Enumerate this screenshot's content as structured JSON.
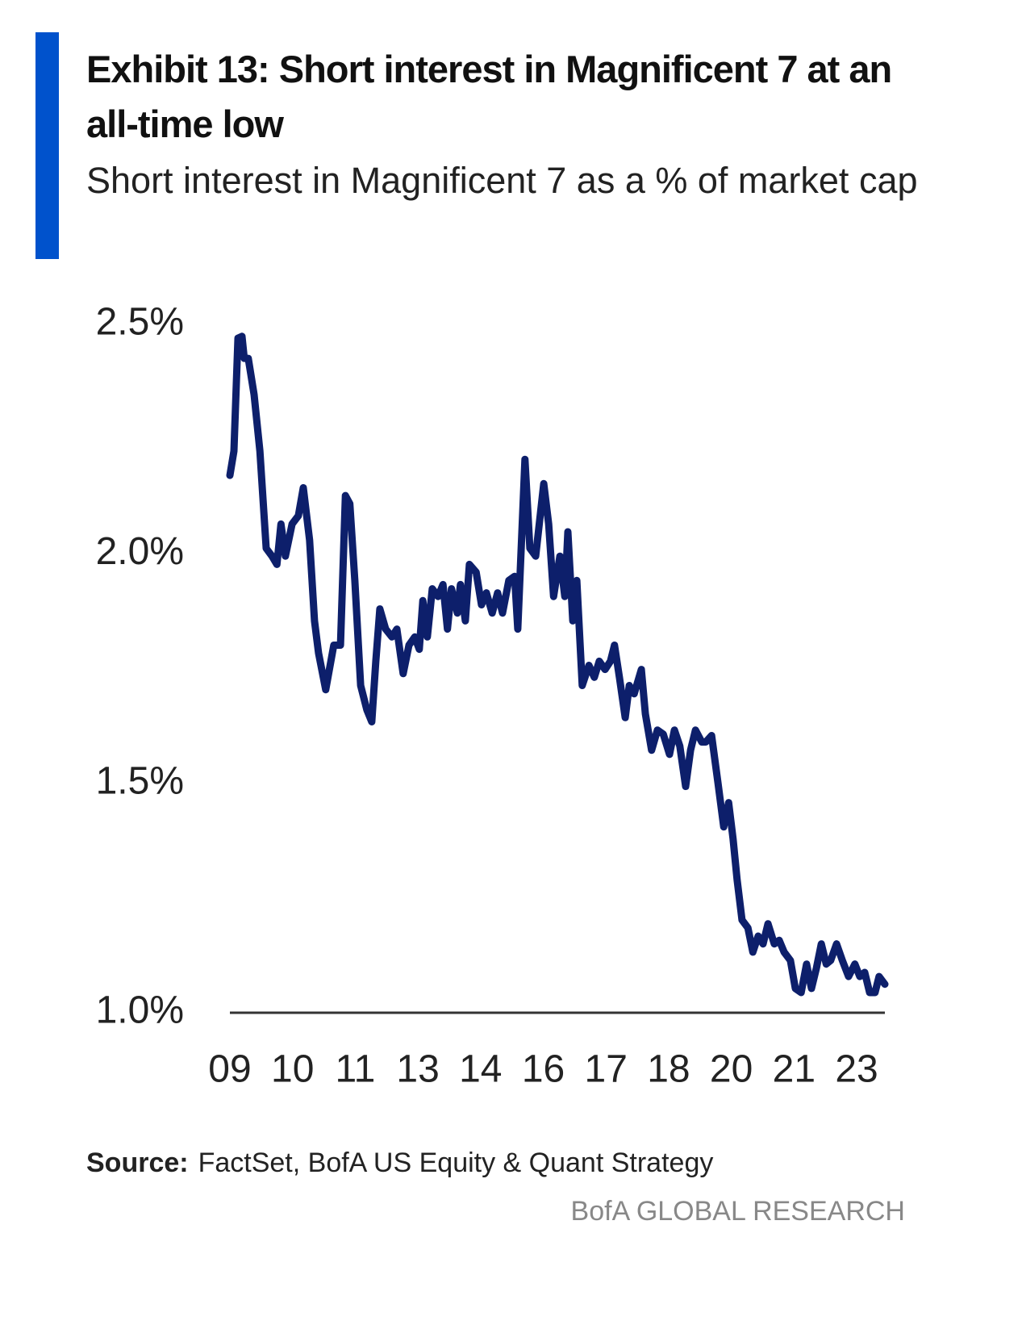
{
  "chart_data": {
    "type": "line",
    "title": "Exhibit 13: Short interest in Magnificent 7 at an all-time low",
    "subtitle": "Short interest in Magnificent 7 as a % of market cap",
    "source_label": "Source:",
    "source": "FactSet, BofA US Equity & Quant Strategy",
    "footer": "BofA GLOBAL RESEARCH",
    "color": "#0d1f6b",
    "x": [
      2009.0,
      2009.09,
      2009.18,
      2009.27,
      2009.32,
      2009.41,
      2009.54,
      2009.67,
      2009.81,
      2009.94,
      2010.05,
      2010.14,
      2010.24,
      2010.39,
      2010.53,
      2010.64,
      2010.78,
      2010.89,
      2010.98,
      2011.14,
      2011.32,
      2011.47,
      2011.58,
      2011.68,
      2011.79,
      2011.92,
      2012.06,
      2012.17,
      2012.26,
      2012.35,
      2012.48,
      2012.62,
      2012.73,
      2012.87,
      2013.0,
      2013.13,
      2013.23,
      2013.31,
      2013.41,
      2013.52,
      2013.65,
      2013.76,
      2013.86,
      2013.95,
      2014.08,
      2014.15,
      2014.26,
      2014.35,
      2014.5,
      2014.62,
      2014.73,
      2014.86,
      2014.98,
      2015.09,
      2015.23,
      2015.36,
      2015.43,
      2015.59,
      2015.7,
      2015.83,
      2016.01,
      2016.12,
      2016.23,
      2016.37,
      2016.48,
      2016.55,
      2016.66,
      2016.75,
      2016.87,
      2017.02,
      2017.14,
      2017.25,
      2017.38,
      2017.5,
      2017.59,
      2017.7,
      2017.83,
      2017.92,
      2018.03,
      2018.19,
      2018.28,
      2018.42,
      2018.55,
      2018.68,
      2018.82,
      2018.93,
      2019.05,
      2019.18,
      2019.29,
      2019.4,
      2019.54,
      2019.63,
      2019.76,
      2019.9,
      2020.03,
      2020.14,
      2020.24,
      2020.33,
      2020.44,
      2020.57,
      2020.68,
      2020.8,
      2020.91,
      2021.02,
      2021.16,
      2021.27,
      2021.38,
      2021.52,
      2021.63,
      2021.76,
      2021.88,
      2021.99,
      2022.1,
      2022.21,
      2022.32,
      2022.42,
      2022.55,
      2022.68,
      2022.82,
      2022.96,
      2023.07,
      2023.18,
      2023.29,
      2023.41,
      2023.5,
      2023.63
    ],
    "values": [
      2.171,
      2.224,
      2.47,
      2.474,
      2.426,
      2.426,
      2.347,
      2.224,
      2.012,
      1.995,
      1.977,
      2.065,
      1.995,
      2.065,
      2.083,
      2.144,
      2.03,
      1.854,
      1.784,
      1.704,
      1.801,
      1.801,
      2.127,
      2.109,
      1.942,
      1.713,
      1.66,
      1.634,
      1.766,
      1.88,
      1.836,
      1.819,
      1.836,
      1.739,
      1.801,
      1.819,
      1.792,
      1.898,
      1.819,
      1.924,
      1.907,
      1.933,
      1.836,
      1.924,
      1.871,
      1.933,
      1.854,
      1.977,
      1.96,
      1.889,
      1.915,
      1.871,
      1.915,
      1.871,
      1.942,
      1.951,
      1.836,
      2.206,
      2.012,
      1.995,
      2.153,
      2.065,
      1.907,
      1.995,
      1.907,
      2.048,
      1.854,
      1.942,
      1.713,
      1.757,
      1.731,
      1.766,
      1.748,
      1.766,
      1.801,
      1.731,
      1.643,
      1.713,
      1.695,
      1.748,
      1.651,
      1.572,
      1.616,
      1.607,
      1.563,
      1.616,
      1.581,
      1.493,
      1.572,
      1.616,
      1.59,
      1.59,
      1.604,
      1.502,
      1.405,
      1.458,
      1.379,
      1.29,
      1.202,
      1.185,
      1.132,
      1.167,
      1.15,
      1.194,
      1.15,
      1.158,
      1.132,
      1.114,
      1.053,
      1.044,
      1.106,
      1.053,
      1.097,
      1.15,
      1.106,
      1.114,
      1.15,
      1.114,
      1.079,
      1.106,
      1.079,
      1.088,
      1.044,
      1.044,
      1.079,
      1.062
    ],
    "xlim": [
      2009,
      2023.63
    ],
    "xticks": [
      {
        "value": 2009,
        "label": "09"
      },
      {
        "value": 2010.4,
        "label": "10"
      },
      {
        "value": 2011.8,
        "label": "11"
      },
      {
        "value": 2013.2,
        "label": "13"
      },
      {
        "value": 2014.6,
        "label": "14"
      },
      {
        "value": 2016.0,
        "label": "16"
      },
      {
        "value": 2017.4,
        "label": "17"
      },
      {
        "value": 2018.8,
        "label": "18"
      },
      {
        "value": 2020.2,
        "label": "20"
      },
      {
        "value": 2021.6,
        "label": "21"
      },
      {
        "value": 2023.0,
        "label": "23"
      }
    ],
    "ylim": [
      1.0,
      2.5
    ],
    "yticks": [
      {
        "value": 1.0,
        "label": "1.0%"
      },
      {
        "value": 1.5,
        "label": "1.5%"
      },
      {
        "value": 2.0,
        "label": "2.0%"
      },
      {
        "value": 2.5,
        "label": "2.5%"
      }
    ],
    "grid": false
  }
}
